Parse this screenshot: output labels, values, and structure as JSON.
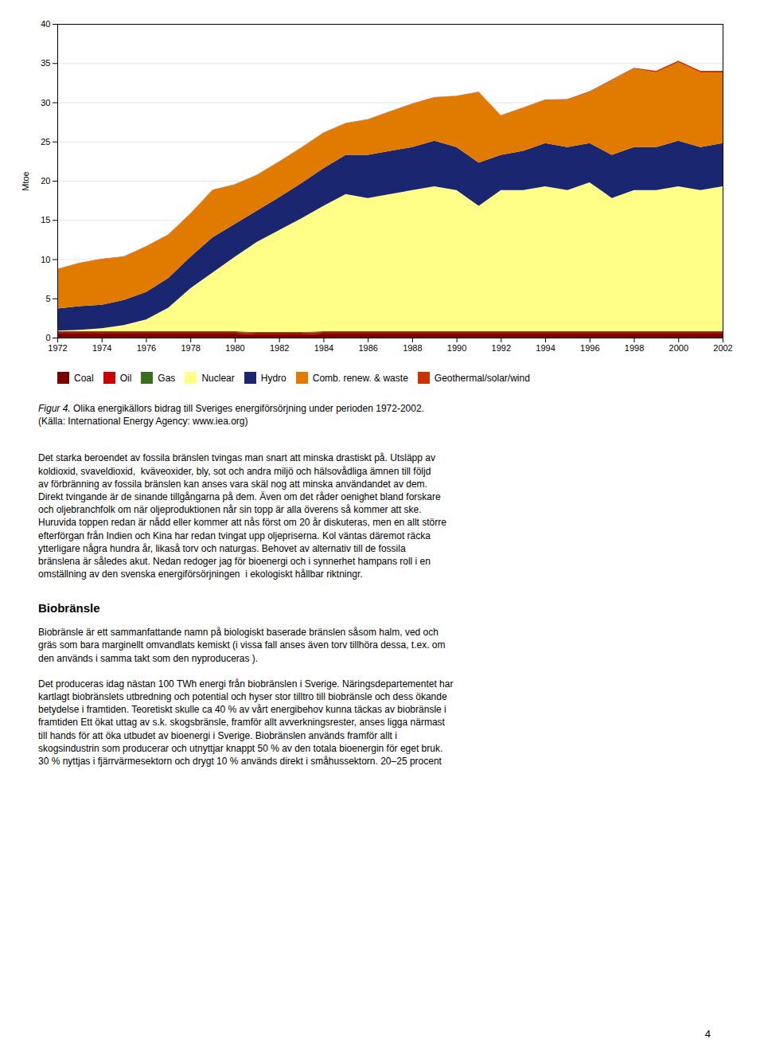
{
  "chart_data": {
    "type": "area",
    "stacked": true,
    "x": [
      1972,
      1973,
      1974,
      1975,
      1976,
      1977,
      1978,
      1979,
      1980,
      1981,
      1982,
      1983,
      1984,
      1985,
      1986,
      1987,
      1988,
      1989,
      1990,
      1991,
      1992,
      1993,
      1994,
      1995,
      1996,
      1997,
      1998,
      1999,
      2000,
      2001,
      2002
    ],
    "series": [
      {
        "name": "Coal",
        "color": "#7b0000",
        "values": [
          0.5,
          0.5,
          0.5,
          0.5,
          0.5,
          0.5,
          0.5,
          0.5,
          0.5,
          0.4,
          0.4,
          0.4,
          0.5,
          0.5,
          0.5,
          0.5,
          0.5,
          0.5,
          0.5,
          0.5,
          0.5,
          0.5,
          0.5,
          0.5,
          0.5,
          0.5,
          0.5,
          0.5,
          0.5,
          0.5,
          0.5
        ]
      },
      {
        "name": "Oil",
        "color": "#cc0000",
        "values": [
          0.2,
          0.2,
          0.2,
          0.2,
          0.2,
          0.2,
          0.2,
          0.2,
          0.2,
          0.2,
          0.2,
          0.2,
          0.2,
          0.2,
          0.2,
          0.2,
          0.2,
          0.2,
          0.2,
          0.2,
          0.2,
          0.2,
          0.2,
          0.2,
          0.2,
          0.2,
          0.2,
          0.2,
          0.2,
          0.2,
          0.2
        ]
      },
      {
        "name": "Gas",
        "color": "#3a6e1f",
        "values": [
          0.1,
          0.1,
          0.1,
          0.1,
          0.1,
          0.1,
          0.1,
          0.1,
          0.1,
          0.1,
          0.1,
          0.1,
          0.1,
          0.1,
          0.1,
          0.1,
          0.1,
          0.1,
          0.1,
          0.1,
          0.1,
          0.1,
          0.1,
          0.1,
          0.1,
          0.1,
          0.1,
          0.1,
          0.1,
          0.1,
          0.1
        ]
      },
      {
        "name": "Nuclear",
        "color": "#ffff88",
        "values": [
          0.1,
          0.2,
          0.4,
          0.8,
          1.5,
          3.0,
          5.5,
          7.5,
          9.5,
          11.5,
          13.0,
          14.5,
          16.0,
          17.5,
          17.0,
          17.5,
          18.0,
          18.5,
          18.0,
          16.0,
          18.0,
          18.0,
          18.5,
          18.0,
          19.0,
          17.0,
          18.0,
          18.0,
          18.5,
          18.0,
          18.5
        ]
      },
      {
        "name": "Hydro",
        "color": "#1a2770",
        "values": [
          2.8,
          3.0,
          3.0,
          3.2,
          3.5,
          3.8,
          4.0,
          4.5,
          4.2,
          4.0,
          4.2,
          4.5,
          4.8,
          5.0,
          5.5,
          5.5,
          5.5,
          5.8,
          5.5,
          5.5,
          4.5,
          5.0,
          5.5,
          5.5,
          5.0,
          5.5,
          5.5,
          5.5,
          5.8,
          5.5,
          5.5
        ]
      },
      {
        "name": "Comb. renew. & waste",
        "color": "#e07b00",
        "values": [
          5.0,
          5.5,
          5.8,
          5.5,
          5.8,
          5.5,
          5.5,
          6.0,
          5.0,
          4.5,
          4.5,
          4.5,
          4.5,
          4.0,
          4.5,
          5.0,
          5.5,
          5.5,
          6.5,
          9.0,
          5.0,
          5.5,
          5.5,
          6.0,
          6.5,
          9.5,
          10.0,
          9.5,
          10.0,
          9.5,
          9.0
        ]
      },
      {
        "name": "Geothermal/solar/wind",
        "color": "#cc3300",
        "values": [
          0.05,
          0.05,
          0.05,
          0.05,
          0.05,
          0.05,
          0.05,
          0.05,
          0.05,
          0.05,
          0.05,
          0.05,
          0.05,
          0.05,
          0.05,
          0.05,
          0.05,
          0.05,
          0.05,
          0.05,
          0.05,
          0.05,
          0.05,
          0.1,
          0.1,
          0.1,
          0.1,
          0.2,
          0.2,
          0.2,
          0.2
        ]
      }
    ],
    "xlim": [
      1972,
      2002
    ],
    "xticks": [
      1972,
      1974,
      1976,
      1978,
      1980,
      1982,
      1984,
      1986,
      1988,
      1990,
      1992,
      1994,
      1996,
      1998,
      2000,
      2002
    ],
    "ylim": [
      0,
      40
    ],
    "yticks": [
      0,
      5,
      10,
      15,
      20,
      25,
      30,
      35,
      40
    ],
    "ylabel": "Mtoe",
    "grid": true,
    "legend": "bottom",
    "annotations": [
      "Figur 4.",
      " Olika energikällors bidrag till Sveriges energiförsörjning under perioden 1972-2002.",
      "(Källa: International Energy Agency: www.iea.org)",
      "Det starka beroendet av fossila bränslen tvingas man snart att minska drastiskt på. Utsläpp av\nkoldioxid, svaveldioxid,  kväveoxider, bly, sot och andra miljö och hälsovådliga ämnen till följd\nav förbränning av fossila bränslen kan anses vara skäl nog att minska användandet av dem.\nDirekt tvingande är de sinande tillgångarna på dem. Även om det råder oenighet bland forskare\noch oljebranchfolk om när oljeproduktionen når sin topp är alla överens så kommer att ske.\nHuruvida toppen redan är nådd eller kommer att nås först om 20 år diskuteras, men en allt större\nefterförgan från Indien och Kina har redan tvingat upp oljepriserna. Kol väntas däremot räcka\nytterligare några hundra år, likaså torv och naturgas. Behovet av alternativ till de fossila\nbränslena är således akut. Nedan redoger jag för bioenergi och i synnerhet hampans roll i en\nomställning av den svenska energiförsörjningen  i ekologiskt hållbar riktningr.",
      "Biobränsle",
      "Biobränsle är ett sammanfattande namn på biologiskt baserade bränslen såsom halm, ved och\ngräs som bara marginellt omvandlats kemiskt (i vissa fall anses även torv tillhöra dessa, t.ex. om\nden används i samma takt som den nyproduceras ).",
      "Det produceras idag nästan 100 TWh energi från biobränslen i Sverige. Näringsdepartementet har\nkartlagt biobränslets utbredning och potential och hyser stor tilltro till biobränsle och dess ökande\nbetydelse i framtiden. Teoretiskt skulle ca 40 % av vårt energibehov kunna täckas av biobränsle i\nframtiden Ett ökat uttag av s.k. skogsbränsle, framför allt avverkningsrester, anses ligga närmast\ntill hands för att öka utbudet av bioenergi i Sverige. Biobränslen används framför allt i\nskogsindustrin som producerar och utnyttjar knappt 50 % av den totala bioenergin för eget bruk.\n30 % nyttjas i fjärrvärmesektorn och drygt 10 % används direkt i småhussektorn. 20–25 procent",
      "4"
    ]
  }
}
